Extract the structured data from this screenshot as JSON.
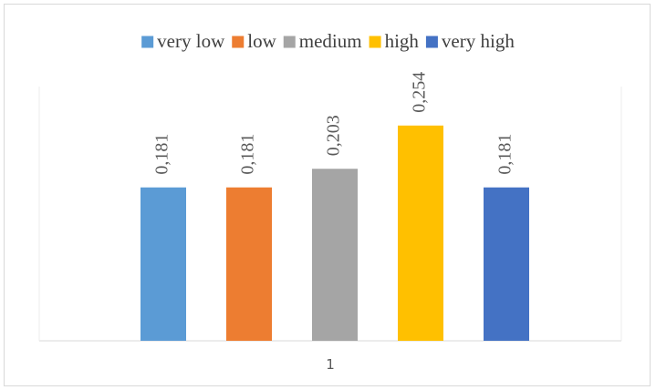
{
  "chart_data": {
    "type": "bar",
    "categories": [
      "1"
    ],
    "series": [
      {
        "name": "very low",
        "values": [
          0.181
        ],
        "label": "0,181",
        "color": "#5b9bd5"
      },
      {
        "name": "low",
        "values": [
          0.181
        ],
        "label": "0,181",
        "color": "#ed7d31"
      },
      {
        "name": "medium",
        "values": [
          0.203
        ],
        "label": "0,203",
        "color": "#a5a5a5"
      },
      {
        "name": "high",
        "values": [
          0.254
        ],
        "label": "0,254",
        "color": "#ffc000"
      },
      {
        "name": "very high",
        "values": [
          0.181
        ],
        "label": "0,181",
        "color": "#4472c4"
      }
    ],
    "title": "",
    "xlabel": "",
    "ylabel": "",
    "ylim": [
      0,
      0.3
    ],
    "legend": "top",
    "grid": false
  }
}
